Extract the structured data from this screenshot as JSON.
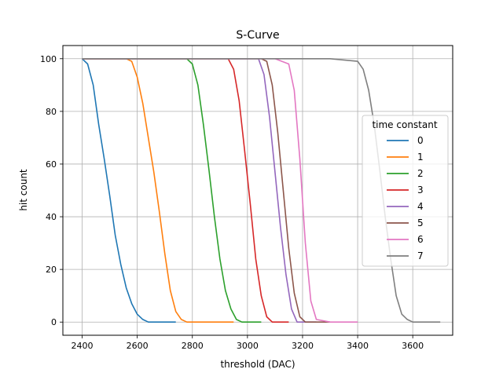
{
  "chart_data": {
    "type": "line",
    "title": "S-Curve",
    "xlabel": "threshold (DAC)",
    "ylabel": "hit count",
    "xlim": [
      2330,
      3745
    ],
    "ylim": [
      -5,
      105
    ],
    "xticks": [
      2400,
      2600,
      2800,
      3000,
      3200,
      3400,
      3600
    ],
    "yticks": [
      0,
      20,
      40,
      60,
      80,
      100
    ],
    "grid": true,
    "legend": {
      "title": "time constant",
      "placement": "center-right"
    },
    "series": [
      {
        "name": "0",
        "color": "#1f77b4",
        "x": [
          2400,
          2420,
          2440,
          2460,
          2480,
          2500,
          2520,
          2540,
          2560,
          2580,
          2600,
          2620,
          2640,
          2660,
          2680,
          2700,
          2720,
          2740
        ],
        "y": [
          100,
          98,
          90,
          75,
          62,
          48,
          33,
          22,
          13,
          7,
          3,
          1,
          0,
          0,
          0,
          0,
          0,
          0
        ]
      },
      {
        "name": "1",
        "color": "#ff7f0e",
        "x": [
          2400,
          2500,
          2560,
          2580,
          2600,
          2620,
          2640,
          2660,
          2680,
          2700,
          2720,
          2740,
          2760,
          2780,
          2800,
          2850,
          2950
        ],
        "y": [
          100,
          100,
          100,
          99,
          93,
          83,
          70,
          57,
          42,
          26,
          12,
          4,
          1,
          0,
          0,
          0,
          0
        ]
      },
      {
        "name": "2",
        "color": "#2ca02c",
        "x": [
          2400,
          2700,
          2780,
          2800,
          2820,
          2840,
          2860,
          2880,
          2900,
          2920,
          2940,
          2960,
          2980,
          3000,
          3050
        ],
        "y": [
          100,
          100,
          100,
          98,
          90,
          75,
          58,
          40,
          24,
          12,
          5,
          1,
          0,
          0,
          0
        ]
      },
      {
        "name": "3",
        "color": "#d62728",
        "x": [
          2400,
          2900,
          2930,
          2950,
          2970,
          2990,
          3010,
          3030,
          3050,
          3070,
          3090,
          3150
        ],
        "y": [
          100,
          100,
          100,
          96,
          84,
          65,
          45,
          24,
          10,
          2,
          0,
          0
        ]
      },
      {
        "name": "4",
        "color": "#9467bd",
        "x": [
          2400,
          3000,
          3040,
          3060,
          3080,
          3100,
          3120,
          3140,
          3160,
          3180,
          3250
        ],
        "y": [
          100,
          100,
          100,
          94,
          78,
          57,
          36,
          18,
          5,
          0,
          0
        ]
      },
      {
        "name": "5",
        "color": "#8c564b",
        "x": [
          2400,
          3050,
          3070,
          3090,
          3110,
          3130,
          3150,
          3170,
          3190,
          3210,
          3300
        ],
        "y": [
          100,
          100,
          99,
          90,
          72,
          50,
          28,
          11,
          2,
          0,
          0
        ]
      },
      {
        "name": "6",
        "color": "#e377c2",
        "x": [
          2400,
          3100,
          3150,
          3170,
          3190,
          3210,
          3230,
          3250,
          3300,
          3400
        ],
        "y": [
          100,
          100,
          98,
          88,
          62,
          30,
          8,
          1,
          0,
          0
        ]
      },
      {
        "name": "7",
        "color": "#7f7f7f",
        "x": [
          2400,
          3300,
          3400,
          3420,
          3440,
          3460,
          3480,
          3500,
          3520,
          3540,
          3560,
          3580,
          3600,
          3650,
          3700
        ],
        "y": [
          100,
          100,
          99,
          96,
          88,
          75,
          58,
          40,
          24,
          10,
          3,
          1,
          0,
          0,
          0
        ]
      }
    ]
  }
}
